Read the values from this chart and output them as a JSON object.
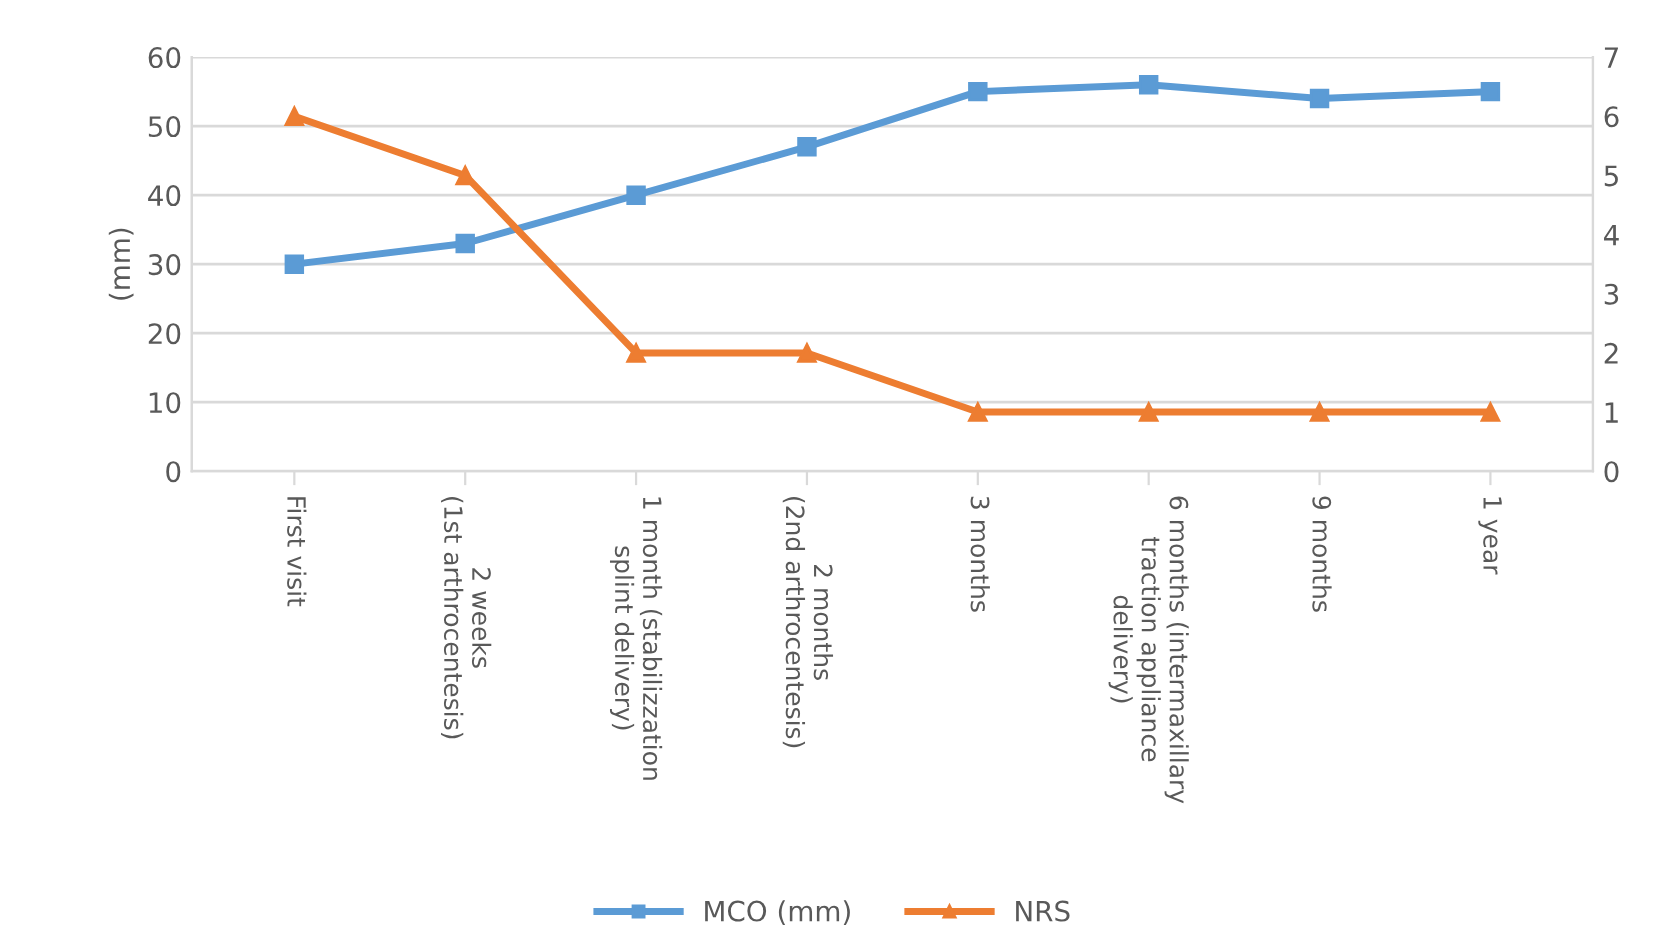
{
  "chart_data": {
    "type": "line",
    "categories": [
      "First visit",
      "2 weeks\n(1st arthrocentesis)",
      "1 month (stabilizzation\nsplint delivery)",
      "2 months\n(2nd arthrocentesis)",
      "3 months",
      "6 months (intermaxillary\ntraction appliance\ndelivery)",
      "9 months",
      "1 year"
    ],
    "ylabel": "(mm)",
    "series": [
      {
        "name": "MCO (mm)",
        "color": "#5b9bd5",
        "marker": "square",
        "values": [
          30,
          33,
          40,
          47,
          55,
          56,
          54,
          55
        ]
      },
      {
        "name": "NRS",
        "color": "#ed7d31",
        "marker": "triangle",
        "axis": "y2",
        "values": [
          6,
          5,
          2,
          2,
          1,
          1,
          1,
          1
        ]
      }
    ],
    "ylim": [
      0,
      60
    ],
    "yticks": [
      0,
      10,
      20,
      30,
      40,
      50,
      60
    ],
    "y2lim": [
      0,
      7
    ],
    "y2ticks": [
      0,
      1,
      2,
      3,
      4,
      5,
      6,
      7
    ],
    "grid": "y",
    "legend": "bottom",
    "line_style": "solid"
  }
}
